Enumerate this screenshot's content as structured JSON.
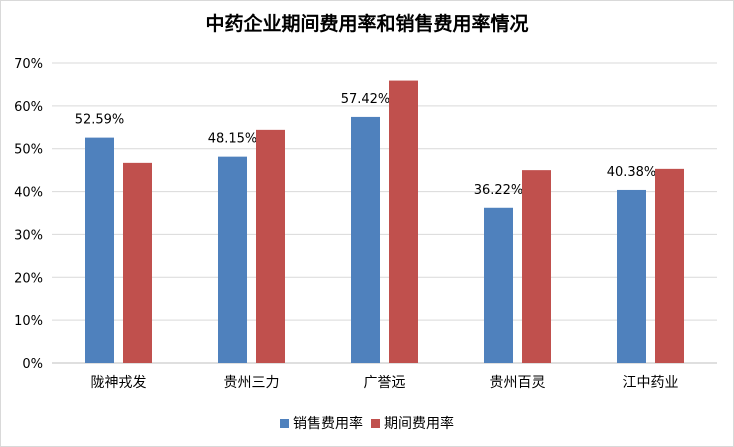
{
  "chart_data": {
    "type": "bar",
    "title": "中药企业期间费用率和销售费用率情况",
    "categories": [
      "陇神戎发",
      "贵州三力",
      "广誉远",
      "贵州百灵",
      "江中药业"
    ],
    "series": [
      {
        "name": "销售费用率",
        "values": [
          52.59,
          48.15,
          57.42,
          36.22,
          40.38
        ],
        "color": "#4f81bd",
        "labels": [
          "52.59%",
          "48.15%",
          "57.42%",
          "36.22%",
          "40.38%"
        ]
      },
      {
        "name": "期间费用率",
        "values": [
          46.7,
          54.4,
          65.9,
          45.0,
          45.3
        ],
        "color": "#c0504d"
      }
    ],
    "ylim": [
      0,
      70
    ],
    "yticks": [
      0,
      10,
      20,
      30,
      40,
      50,
      60,
      70
    ],
    "ytick_labels": [
      "0%",
      "10%",
      "20%",
      "30%",
      "40%",
      "50%",
      "60%",
      "70%"
    ],
    "xlabel": "",
    "ylabel": "",
    "grid": true,
    "legend": "bottom"
  }
}
